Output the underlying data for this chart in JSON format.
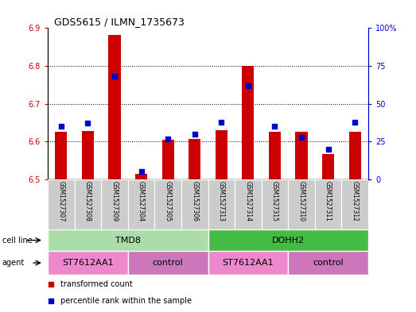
{
  "title": "GDS5615 / ILMN_1735673",
  "samples": [
    "GSM1527307",
    "GSM1527308",
    "GSM1527309",
    "GSM1527304",
    "GSM1527305",
    "GSM1527306",
    "GSM1527313",
    "GSM1527314",
    "GSM1527315",
    "GSM1527310",
    "GSM1527311",
    "GSM1527312"
  ],
  "red_values": [
    6.625,
    6.628,
    6.882,
    6.515,
    6.605,
    6.608,
    6.63,
    6.8,
    6.625,
    6.625,
    6.568,
    6.625
  ],
  "blue_percentiles": [
    35,
    37,
    68,
    5,
    27,
    30,
    38,
    62,
    35,
    28,
    20,
    38
  ],
  "ymin": 6.5,
  "ymax": 6.9,
  "y_ticks": [
    6.5,
    6.6,
    6.7,
    6.8,
    6.9
  ],
  "right_y_ticks": [
    0,
    25,
    50,
    75,
    100
  ],
  "right_y_labels": [
    "0",
    "25",
    "50",
    "75",
    "100%"
  ],
  "cell_line_groups": [
    {
      "label": "TMD8",
      "start": 0,
      "end": 6,
      "color": "#aaddaa"
    },
    {
      "label": "DOHH2",
      "start": 6,
      "end": 12,
      "color": "#44bb44"
    }
  ],
  "agent_groups": [
    {
      "label": "ST7612AA1",
      "start": 0,
      "end": 3,
      "color": "#ee88cc"
    },
    {
      "label": "control",
      "start": 3,
      "end": 6,
      "color": "#cc77bb"
    },
    {
      "label": "ST7612AA1",
      "start": 6,
      "end": 9,
      "color": "#ee88cc"
    },
    {
      "label": "control",
      "start": 9,
      "end": 12,
      "color": "#cc77bb"
    }
  ],
  "bar_color": "#cc0000",
  "dot_color": "#0000cc",
  "sample_bg": "#cccccc",
  "bar_width": 0.45
}
